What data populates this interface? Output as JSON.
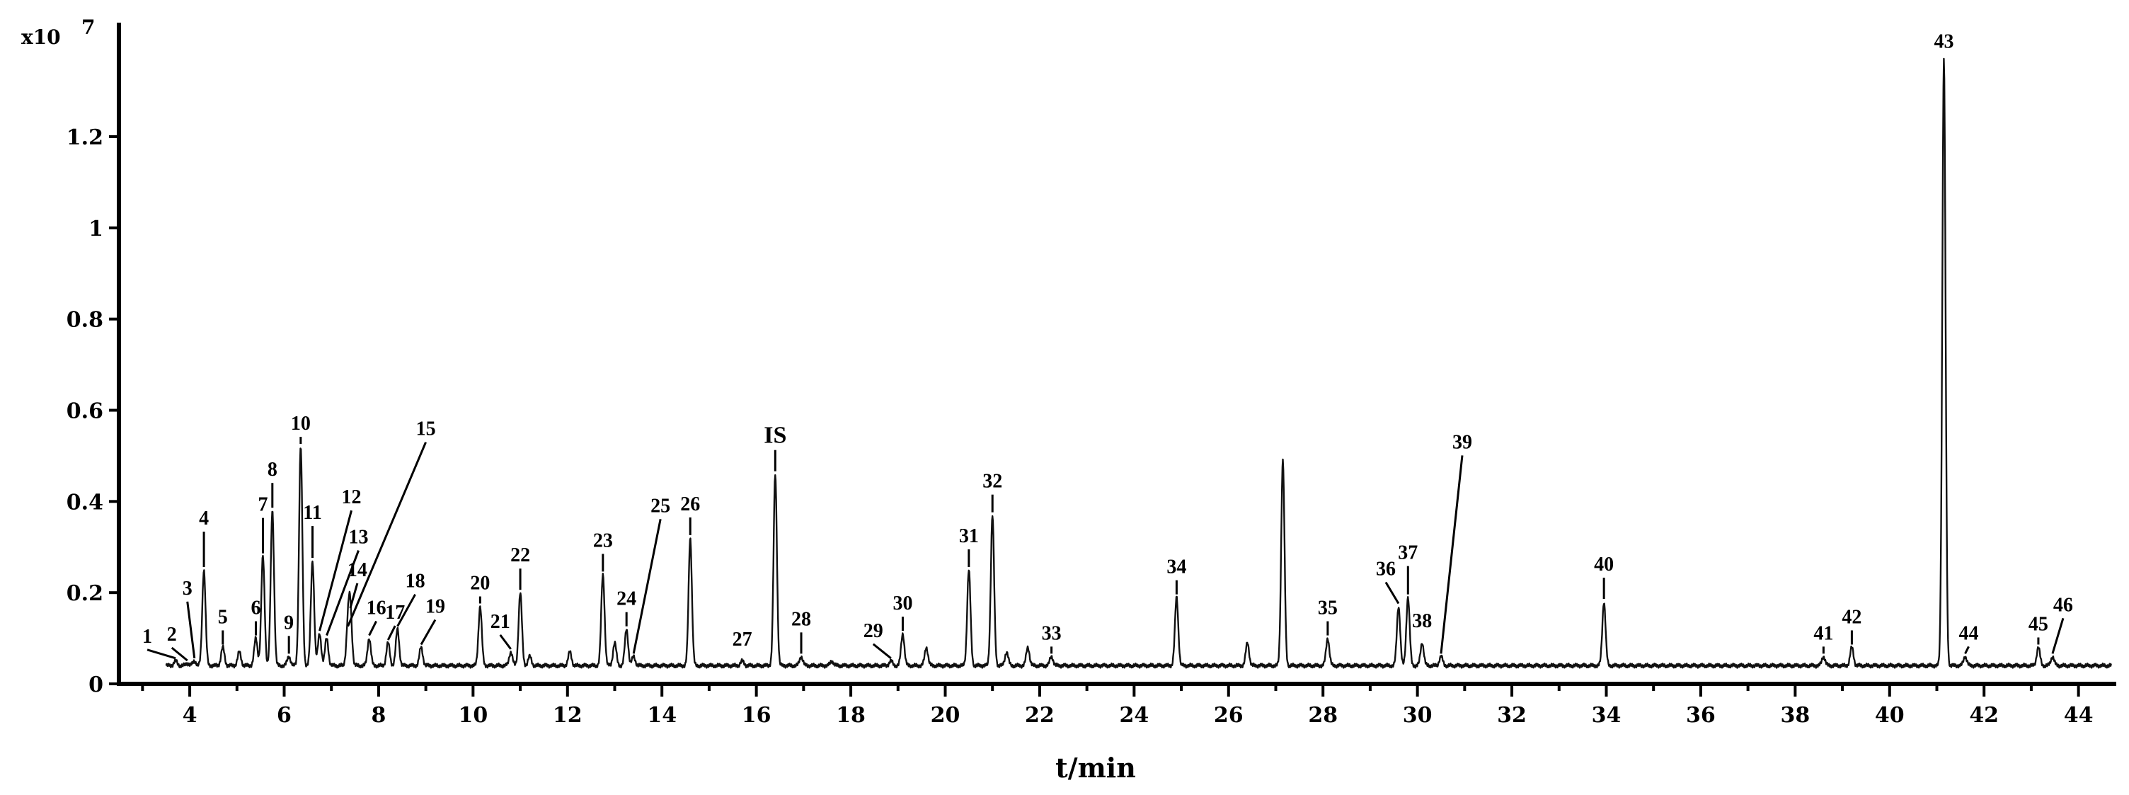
{
  "chart_data": {
    "type": "line",
    "title": "",
    "xlabel": "t/min",
    "ylabel": "",
    "y_scale_label": "x10",
    "y_scale_exponent": "7",
    "xlim": [
      2.5,
      44.8
    ],
    "ylim": [
      0,
      1.45
    ],
    "x_ticks": [
      "4",
      "6",
      "8",
      "10",
      "12",
      "14",
      "16",
      "18",
      "20",
      "22",
      "24",
      "26",
      "28",
      "30",
      "32",
      "34",
      "36",
      "38",
      "40",
      "42",
      "44"
    ],
    "y_ticks": [
      "0",
      "0.2",
      "0.4",
      "0.6",
      "0.8",
      "1",
      "1.2"
    ],
    "grid": false,
    "baseline": 0.04,
    "peaks": [
      {
        "t": 3.7,
        "h": 0.05,
        "label": "1"
      },
      {
        "t": 3.95,
        "h": 0.045,
        "label": "2"
      },
      {
        "t": 4.1,
        "h": 0.05,
        "label": "3"
      },
      {
        "t": 4.3,
        "h": 0.25,
        "label": "4"
      },
      {
        "t": 4.7,
        "h": 0.08,
        "label": "5"
      },
      {
        "t": 5.05,
        "h": 0.07,
        "label": ""
      },
      {
        "t": 5.4,
        "h": 0.1,
        "label": "6"
      },
      {
        "t": 5.55,
        "h": 0.28,
        "label": "7"
      },
      {
        "t": 5.75,
        "h": 0.38,
        "label": "8"
      },
      {
        "t": 6.1,
        "h": 0.06,
        "label": "9"
      },
      {
        "t": 6.35,
        "h": 0.52,
        "label": "10"
      },
      {
        "t": 6.6,
        "h": 0.27,
        "label": "11"
      },
      {
        "t": 6.75,
        "h": 0.11,
        "label": "12"
      },
      {
        "t": 6.9,
        "h": 0.1,
        "label": "13"
      },
      {
        "t": 7.4,
        "h": 0.16,
        "label": "14"
      },
      {
        "t": 7.35,
        "h": 0.12,
        "label": "15"
      },
      {
        "t": 7.8,
        "h": 0.1,
        "label": "16"
      },
      {
        "t": 8.2,
        "h": 0.09,
        "label": "17"
      },
      {
        "t": 8.4,
        "h": 0.12,
        "label": "18"
      },
      {
        "t": 8.9,
        "h": 0.08,
        "label": "19"
      },
      {
        "t": 10.15,
        "h": 0.17,
        "label": "20"
      },
      {
        "t": 10.8,
        "h": 0.07,
        "label": "21"
      },
      {
        "t": 11.0,
        "h": 0.2,
        "label": "22"
      },
      {
        "t": 11.2,
        "h": 0.06,
        "label": ""
      },
      {
        "t": 12.05,
        "h": 0.07,
        "label": ""
      },
      {
        "t": 12.75,
        "h": 0.24,
        "label": "23"
      },
      {
        "t": 13.0,
        "h": 0.09,
        "label": ""
      },
      {
        "t": 13.25,
        "h": 0.12,
        "label": "24"
      },
      {
        "t": 13.4,
        "h": 0.06,
        "label": "25"
      },
      {
        "t": 14.6,
        "h": 0.32,
        "label": "26"
      },
      {
        "t": 15.7,
        "h": 0.05,
        "label": "27"
      },
      {
        "t": 16.4,
        "h": 0.46,
        "label": "IS"
      },
      {
        "t": 16.95,
        "h": 0.06,
        "label": "28"
      },
      {
        "t": 17.6,
        "h": 0.05,
        "label": ""
      },
      {
        "t": 18.85,
        "h": 0.05,
        "label": "29"
      },
      {
        "t": 19.1,
        "h": 0.11,
        "label": "30"
      },
      {
        "t": 19.6,
        "h": 0.08,
        "label": ""
      },
      {
        "t": 20.5,
        "h": 0.25,
        "label": "31"
      },
      {
        "t": 21.0,
        "h": 0.37,
        "label": "32"
      },
      {
        "t": 21.3,
        "h": 0.07,
        "label": ""
      },
      {
        "t": 21.75,
        "h": 0.08,
        "label": ""
      },
      {
        "t": 22.25,
        "h": 0.06,
        "label": "33"
      },
      {
        "t": 24.9,
        "h": 0.19,
        "label": "34"
      },
      {
        "t": 26.4,
        "h": 0.09,
        "label": ""
      },
      {
        "t": 27.15,
        "h": 0.49,
        "label": ""
      },
      {
        "t": 28.1,
        "h": 0.1,
        "label": "35"
      },
      {
        "t": 29.6,
        "h": 0.17,
        "label": "36"
      },
      {
        "t": 29.8,
        "h": 0.19,
        "label": "37"
      },
      {
        "t": 30.1,
        "h": 0.09,
        "label": "38"
      },
      {
        "t": 30.5,
        "h": 0.06,
        "label": "39"
      },
      {
        "t": 33.95,
        "h": 0.18,
        "label": "40"
      },
      {
        "t": 38.6,
        "h": 0.06,
        "label": "41"
      },
      {
        "t": 39.2,
        "h": 0.08,
        "label": "42"
      },
      {
        "t": 41.15,
        "h": 1.37,
        "label": "43"
      },
      {
        "t": 41.6,
        "h": 0.06,
        "label": "44"
      },
      {
        "t": 43.15,
        "h": 0.08,
        "label": "45"
      },
      {
        "t": 43.45,
        "h": 0.06,
        "label": "46"
      }
    ]
  }
}
